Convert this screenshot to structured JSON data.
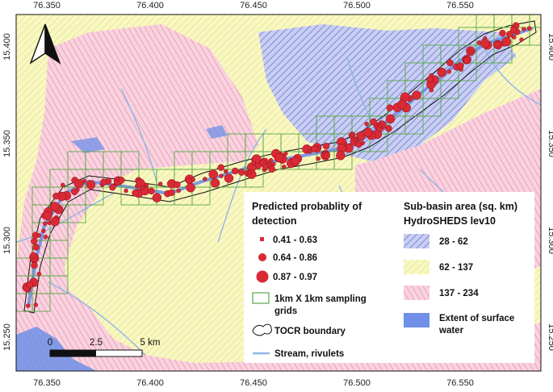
{
  "map": {
    "x_ticks": [
      "76.350",
      "76.400",
      "76.450",
      "76.500",
      "76.550"
    ],
    "y_ticks": [
      "15.400",
      "15.350",
      "15.300",
      "15.250"
    ],
    "colors": {
      "subbasin_small": "#a9b2e8",
      "subbasin_mid": "#f5f3a6",
      "subbasin_large": "#f3b3c8",
      "surface_water": "#6f8fe8",
      "stream": "#8fb6e6",
      "grid": "#57a845",
      "point": "#d92a35",
      "boundary": "#111111"
    },
    "north_arrow": "north-arrow-icon"
  },
  "scale_bar": {
    "labels": [
      "0",
      "2.5",
      "5 km"
    ]
  },
  "legend_detection": {
    "title_line1": "Predicted probablity of",
    "title_line2": "detection",
    "classes": [
      "0.41 - 0.63",
      "0.64 - 0.86",
      "0.87 - 0.97"
    ],
    "grid_label_line1": "1km X 1km sampling",
    "grid_label_line2": "grids",
    "boundary_label": "TOCR boundary",
    "stream_label": "Stream, rivulets"
  },
  "legend_subbasin": {
    "title_line1": "Sub-basin area (sq. km)",
    "title_line2": "HydroSHEDS lev10",
    "classes": [
      "28 - 62",
      "62 - 137",
      "137 - 234"
    ],
    "water_label_line1": "Extent of surface",
    "water_label_line2": "water"
  }
}
